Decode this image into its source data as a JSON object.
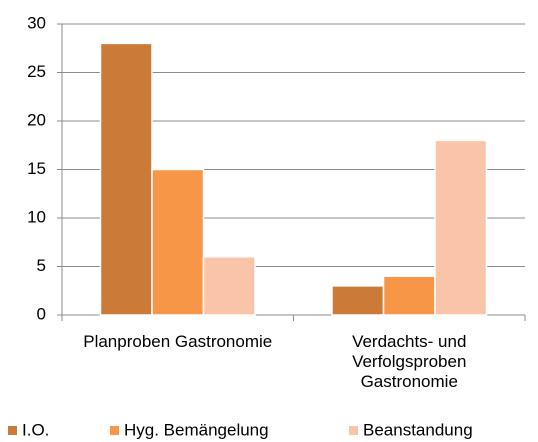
{
  "chart_data": {
    "type": "bar",
    "categories": [
      "Planproben Gastronomie",
      "Verdachts- und Verfolgsproben Gastronomie"
    ],
    "series": [
      {
        "name": "I.O.",
        "color": "#cc7a37",
        "values": [
          28,
          3
        ]
      },
      {
        "name": "Hyg. Bemängelung",
        "color": "#f79646",
        "values": [
          15,
          4
        ]
      },
      {
        "name": "Beanstandung",
        "color": "#fac4a8",
        "values": [
          6,
          18
        ]
      }
    ],
    "ylim": [
      0,
      30
    ],
    "yticks": [
      0,
      5,
      10,
      15,
      20,
      25,
      30
    ],
    "grid": true,
    "legend": "bottom"
  }
}
